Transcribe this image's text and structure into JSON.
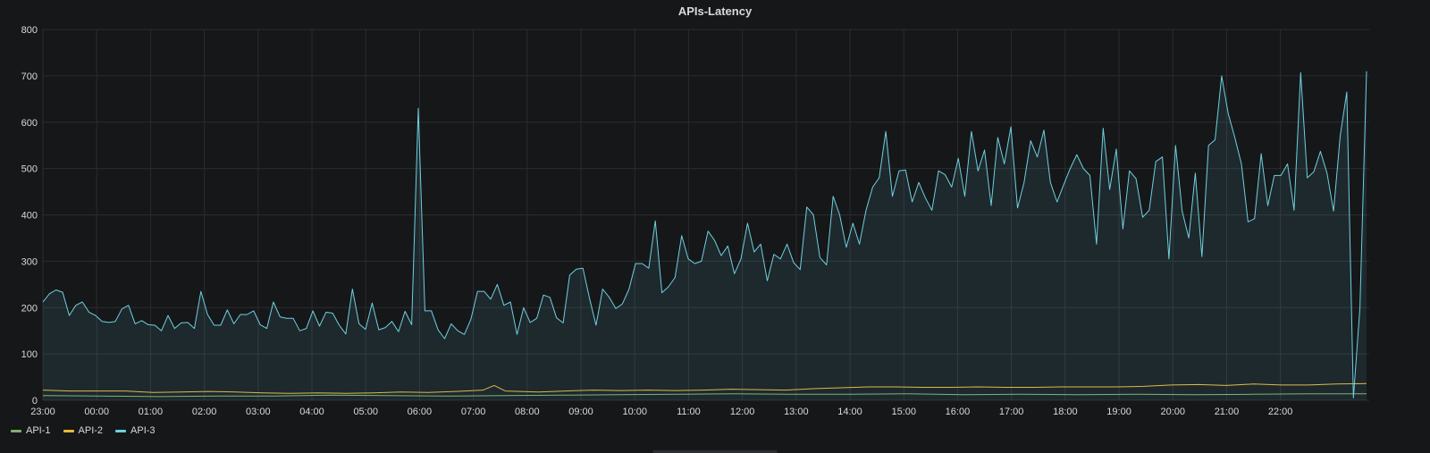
{
  "panel": {
    "title": "APIs-Latency"
  },
  "legend": {
    "items": [
      {
        "label": "API-1",
        "color": "#7eb26d"
      },
      {
        "label": "API-2",
        "color": "#eab839"
      },
      {
        "label": "API-3",
        "color": "#6ed0e0"
      }
    ]
  },
  "chart_data": {
    "type": "area",
    "title": "APIs-Latency",
    "xlabel": "",
    "ylabel": "",
    "ylim": [
      0,
      800
    ],
    "yticks": [
      0,
      100,
      200,
      300,
      400,
      500,
      600,
      700,
      800
    ],
    "xticks": [
      "23:00",
      "00:00",
      "01:00",
      "02:00",
      "03:00",
      "04:00",
      "05:00",
      "06:00",
      "07:00",
      "08:00",
      "09:00",
      "10:00",
      "11:00",
      "12:00",
      "13:00",
      "14:00",
      "15:00",
      "16:00",
      "17:00",
      "18:00",
      "19:00",
      "20:00",
      "21:00",
      "22:00"
    ],
    "x_range_hours": [
      0,
      24.05
    ],
    "grid": true,
    "legend_position": "bottom-left",
    "series": [
      {
        "name": "API-1",
        "color": "#7eb26d",
        "fill": false,
        "points": [
          [
            0,
            10
          ],
          [
            1,
            9
          ],
          [
            2,
            8
          ],
          [
            3,
            9
          ],
          [
            4,
            9
          ],
          [
            5,
            11
          ],
          [
            6,
            10
          ],
          [
            7,
            9
          ],
          [
            8,
            10
          ],
          [
            9,
            11
          ],
          [
            10,
            12
          ],
          [
            11,
            13
          ],
          [
            12,
            14
          ],
          [
            13,
            13
          ],
          [
            14,
            13
          ],
          [
            15,
            14
          ],
          [
            16,
            12
          ],
          [
            17,
            13
          ],
          [
            18,
            12
          ],
          [
            19,
            13
          ],
          [
            20,
            12
          ],
          [
            21,
            13
          ],
          [
            22,
            14
          ],
          [
            23,
            14
          ]
        ]
      },
      {
        "name": "API-2",
        "color": "#eab839",
        "fill": false,
        "points": [
          [
            0,
            22
          ],
          [
            0.5,
            20
          ],
          [
            1,
            20
          ],
          [
            1.5,
            20
          ],
          [
            2,
            17
          ],
          [
            2.5,
            18
          ],
          [
            3,
            19
          ],
          [
            3.5,
            18
          ],
          [
            4,
            16
          ],
          [
            4.5,
            15
          ],
          [
            5,
            16
          ],
          [
            5.5,
            15
          ],
          [
            6,
            16
          ],
          [
            6.5,
            18
          ],
          [
            7,
            17
          ],
          [
            7.5,
            19
          ],
          [
            8,
            22
          ],
          [
            8.2,
            32
          ],
          [
            8.4,
            20
          ],
          [
            9,
            18
          ],
          [
            9.5,
            20
          ],
          [
            10,
            22
          ],
          [
            10.5,
            21
          ],
          [
            11,
            22
          ],
          [
            11.5,
            21
          ],
          [
            12,
            22
          ],
          [
            12.5,
            24
          ],
          [
            13,
            23
          ],
          [
            13.5,
            22
          ],
          [
            14,
            25
          ],
          [
            14.5,
            27
          ],
          [
            15,
            29
          ],
          [
            15.5,
            29
          ],
          [
            16,
            28
          ],
          [
            16.5,
            28
          ],
          [
            17,
            29
          ],
          [
            17.5,
            28
          ],
          [
            18,
            28
          ],
          [
            18.5,
            29
          ],
          [
            19,
            29
          ],
          [
            19.5,
            29
          ],
          [
            20,
            30
          ],
          [
            20.5,
            33
          ],
          [
            21,
            34
          ],
          [
            21.5,
            32
          ],
          [
            22,
            35
          ],
          [
            22.5,
            33
          ],
          [
            23,
            33
          ],
          [
            23.5,
            35
          ],
          [
            24.05,
            36
          ]
        ]
      },
      {
        "name": "API-3",
        "color": "#6ed0e0",
        "fill": true,
        "points": [
          [
            0,
            212
          ],
          [
            0.125,
            230
          ],
          [
            0.25,
            238
          ],
          [
            0.375,
            233
          ],
          [
            0.5,
            183
          ],
          [
            0.625,
            205
          ],
          [
            0.75,
            212
          ],
          [
            0.875,
            190
          ],
          [
            1,
            183
          ],
          [
            1.125,
            170
          ],
          [
            1.25,
            168
          ],
          [
            1.375,
            170
          ],
          [
            1.5,
            197
          ],
          [
            1.625,
            205
          ],
          [
            1.75,
            165
          ],
          [
            1.875,
            172
          ],
          [
            2,
            163
          ],
          [
            2.125,
            162
          ],
          [
            2.25,
            150
          ],
          [
            2.375,
            183
          ],
          [
            2.5,
            155
          ],
          [
            2.625,
            167
          ],
          [
            2.75,
            168
          ],
          [
            2.875,
            155
          ],
          [
            3,
            235
          ],
          [
            3.125,
            185
          ],
          [
            3.25,
            162
          ],
          [
            3.375,
            162
          ],
          [
            3.5,
            195
          ],
          [
            3.625,
            165
          ],
          [
            3.75,
            185
          ],
          [
            3.875,
            185
          ],
          [
            4,
            193
          ],
          [
            4.125,
            163
          ],
          [
            4.25,
            155
          ],
          [
            4.375,
            212
          ],
          [
            4.5,
            180
          ],
          [
            4.625,
            177
          ],
          [
            4.75,
            177
          ],
          [
            4.875,
            150
          ],
          [
            5,
            155
          ],
          [
            5.125,
            193
          ],
          [
            5.25,
            160
          ],
          [
            5.375,
            190
          ],
          [
            5.5,
            188
          ],
          [
            5.625,
            162
          ],
          [
            5.75,
            143
          ],
          [
            5.875,
            240
          ],
          [
            6,
            165
          ],
          [
            6.125,
            153
          ],
          [
            6.25,
            210
          ],
          [
            6.375,
            152
          ],
          [
            6.5,
            157
          ],
          [
            6.625,
            170
          ],
          [
            6.75,
            148
          ],
          [
            6.875,
            192
          ],
          [
            7,
            163
          ],
          [
            7.125,
            630
          ],
          [
            7.25,
            193
          ],
          [
            7.375,
            193
          ],
          [
            7.5,
            152
          ],
          [
            7.625,
            133
          ],
          [
            7.75,
            165
          ],
          [
            7.875,
            150
          ],
          [
            8,
            142
          ],
          [
            8.125,
            175
          ],
          [
            8.25,
            235
          ],
          [
            8.375,
            235
          ],
          [
            8.5,
            218
          ],
          [
            8.625,
            250
          ],
          [
            8.75,
            205
          ],
          [
            8.875,
            212
          ],
          [
            9,
            142
          ],
          [
            9.125,
            200
          ],
          [
            9.25,
            168
          ],
          [
            9.375,
            177
          ],
          [
            9.5,
            227
          ],
          [
            9.625,
            222
          ],
          [
            9.75,
            178
          ],
          [
            9.875,
            167
          ],
          [
            10,
            270
          ],
          [
            10.125,
            283
          ],
          [
            10.25,
            285
          ],
          [
            10.375,
            220
          ],
          [
            10.5,
            162
          ],
          [
            10.625,
            240
          ],
          [
            10.75,
            222
          ],
          [
            10.875,
            198
          ],
          [
            11,
            208
          ],
          [
            11.125,
            240
          ],
          [
            11.25,
            295
          ],
          [
            11.375,
            295
          ],
          [
            11.5,
            285
          ],
          [
            11.625,
            387
          ],
          [
            11.75,
            232
          ],
          [
            11.875,
            245
          ],
          [
            12,
            265
          ],
          [
            12.125,
            355
          ],
          [
            12.25,
            305
          ],
          [
            12.375,
            295
          ],
          [
            12.5,
            300
          ],
          [
            12.625,
            365
          ],
          [
            12.75,
            345
          ],
          [
            12.875,
            312
          ],
          [
            13,
            333
          ],
          [
            13.125,
            273
          ],
          [
            13.25,
            305
          ],
          [
            13.375,
            382
          ],
          [
            13.5,
            320
          ],
          [
            13.625,
            337
          ],
          [
            13.75,
            258
          ],
          [
            13.875,
            315
          ],
          [
            14,
            305
          ],
          [
            14.125,
            337
          ],
          [
            14.25,
            297
          ],
          [
            14.375,
            282
          ],
          [
            14.5,
            417
          ],
          [
            14.625,
            400
          ],
          [
            14.75,
            308
          ],
          [
            14.875,
            292
          ],
          [
            15,
            440
          ],
          [
            15.125,
            400
          ],
          [
            15.25,
            330
          ],
          [
            15.375,
            382
          ],
          [
            15.5,
            337
          ],
          [
            15.625,
            410
          ],
          [
            15.75,
            460
          ],
          [
            15.875,
            480
          ],
          [
            16,
            580
          ],
          [
            16.125,
            440
          ],
          [
            16.25,
            495
          ],
          [
            16.375,
            497
          ],
          [
            16.5,
            428
          ],
          [
            16.625,
            470
          ],
          [
            16.75,
            437
          ],
          [
            16.875,
            410
          ],
          [
            17,
            495
          ],
          [
            17.125,
            487
          ],
          [
            17.25,
            460
          ],
          [
            17.375,
            522
          ],
          [
            17.5,
            440
          ],
          [
            17.625,
            580
          ],
          [
            17.75,
            495
          ],
          [
            17.875,
            540
          ],
          [
            18,
            420
          ],
          [
            18.125,
            567
          ],
          [
            18.25,
            510
          ],
          [
            18.375,
            590
          ],
          [
            18.5,
            415
          ],
          [
            18.625,
            470
          ],
          [
            18.75,
            560
          ],
          [
            18.875,
            525
          ],
          [
            19,
            583
          ],
          [
            19.125,
            470
          ],
          [
            19.25,
            428
          ],
          [
            19.375,
            465
          ],
          [
            19.5,
            500
          ],
          [
            19.625,
            530
          ],
          [
            19.75,
            500
          ],
          [
            19.875,
            485
          ],
          [
            20,
            337
          ],
          [
            20.125,
            587
          ],
          [
            20.25,
            455
          ],
          [
            20.375,
            542
          ],
          [
            20.5,
            370
          ],
          [
            20.625,
            495
          ],
          [
            20.75,
            478
          ],
          [
            20.875,
            395
          ],
          [
            21,
            410
          ],
          [
            21.125,
            515
          ],
          [
            21.25,
            525
          ],
          [
            21.375,
            305
          ],
          [
            21.5,
            550
          ],
          [
            21.625,
            408
          ],
          [
            21.75,
            350
          ],
          [
            21.875,
            490
          ],
          [
            22,
            310
          ],
          [
            22.125,
            550
          ],
          [
            22.25,
            562
          ],
          [
            22.375,
            700
          ],
          [
            22.5,
            618
          ],
          [
            22.625,
            567
          ],
          [
            22.75,
            510
          ],
          [
            22.875,
            385
          ],
          [
            23,
            392
          ],
          [
            23.125,
            532
          ],
          [
            23.25,
            420
          ],
          [
            23.375,
            485
          ],
          [
            23.5,
            485
          ],
          [
            23.625,
            510
          ],
          [
            23.75,
            410
          ],
          [
            23.875,
            707
          ],
          [
            24,
            480
          ],
          [
            24.125,
            493
          ],
          [
            24.25,
            537
          ],
          [
            24.375,
            490
          ],
          [
            24.5,
            408
          ],
          [
            24.625,
            570
          ],
          [
            24.75,
            665
          ],
          [
            24.875,
            5
          ],
          [
            25,
            200
          ],
          [
            25.125,
            710
          ]
        ],
        "points_note": "ignore"
      }
    ]
  }
}
